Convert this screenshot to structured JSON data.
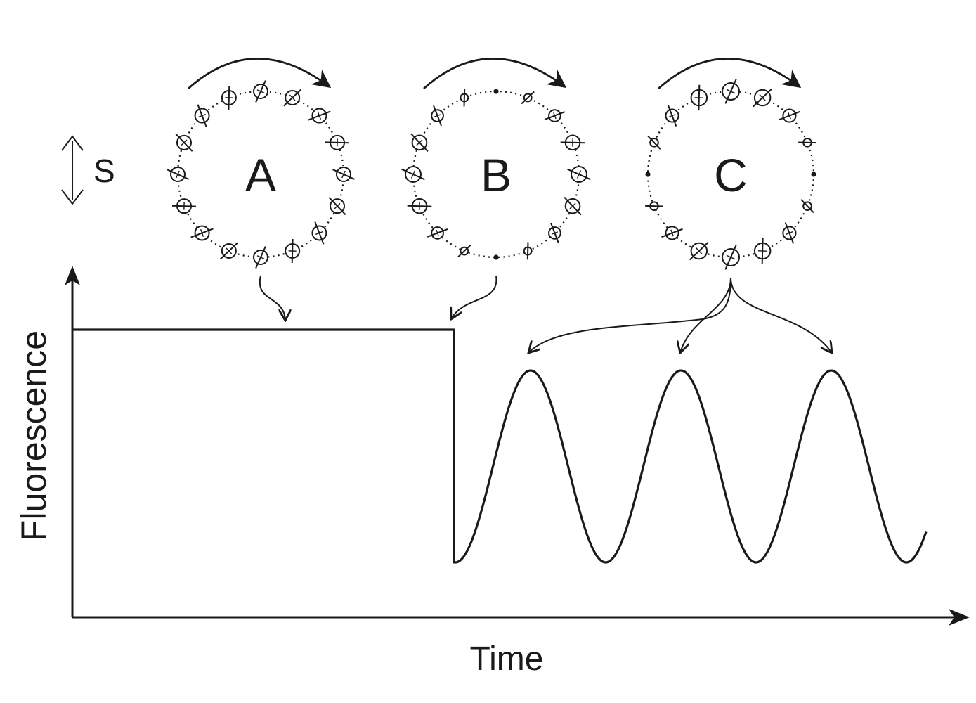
{
  "axes": {
    "y_label": "Fluorescence",
    "x_label": "Time"
  },
  "legend": {
    "symbol": "S"
  },
  "wheels": [
    {
      "id": "A",
      "label": "A",
      "pattern": "uniform"
    },
    {
      "id": "B",
      "label": "B",
      "pattern": "sides-large"
    },
    {
      "id": "C",
      "label": "C",
      "pattern": "top-bottom-large"
    }
  ],
  "signal": {
    "constant_phase": "high",
    "oscillation_peaks": 3
  },
  "colors": {
    "ink": "#1a1a1a",
    "background": "#ffffff"
  }
}
